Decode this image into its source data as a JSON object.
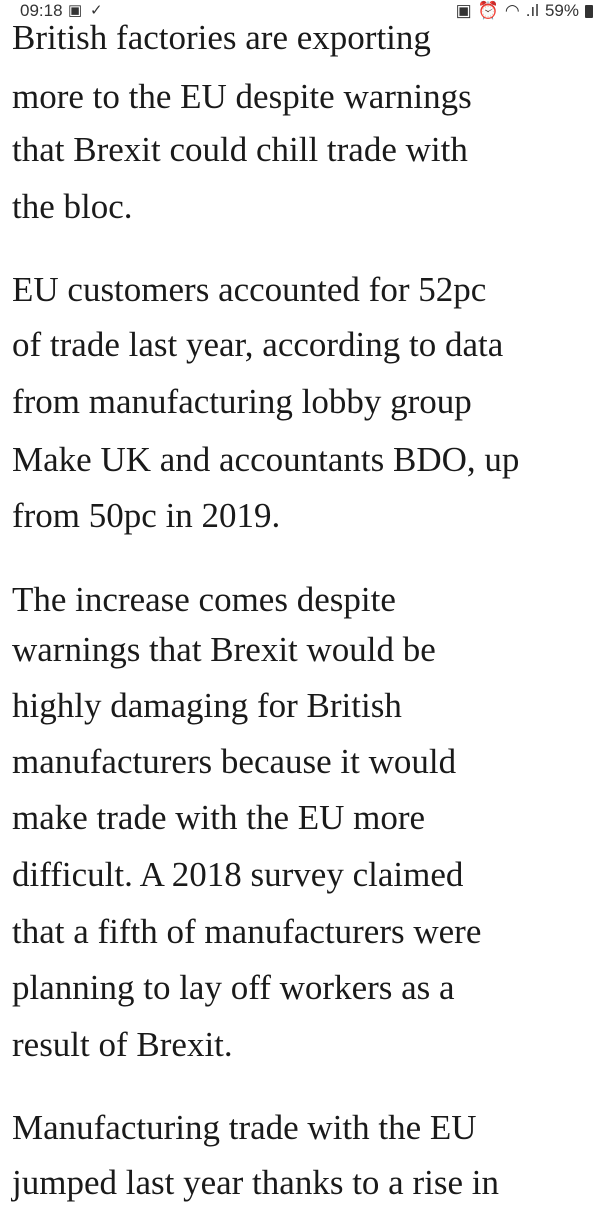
{
  "status_bar": {
    "time": "09:18",
    "battery": "59%"
  },
  "article": {
    "paragraphs": [
      [
        "British factories are exporting",
        "more to the EU despite warnings",
        "that Brexit could chill trade with",
        "the bloc."
      ],
      [
        "EU customers accounted for 52pc",
        "of trade last year, according to data",
        "from manufacturing lobby group",
        "Make UK and accountants BDO, up",
        "from 50pc in 2019."
      ],
      [
        "The increase comes despite",
        "warnings that Brexit would be",
        "highly damaging for British",
        "manufacturers because it would",
        "make trade with the EU more",
        "difficult. A 2018 survey claimed",
        "that a fifth of manufacturers were",
        "planning to lay off workers as a",
        "result of Brexit."
      ],
      [
        "Manufacturing trade with the EU",
        "jumped last year thanks to a rise in"
      ]
    ]
  }
}
